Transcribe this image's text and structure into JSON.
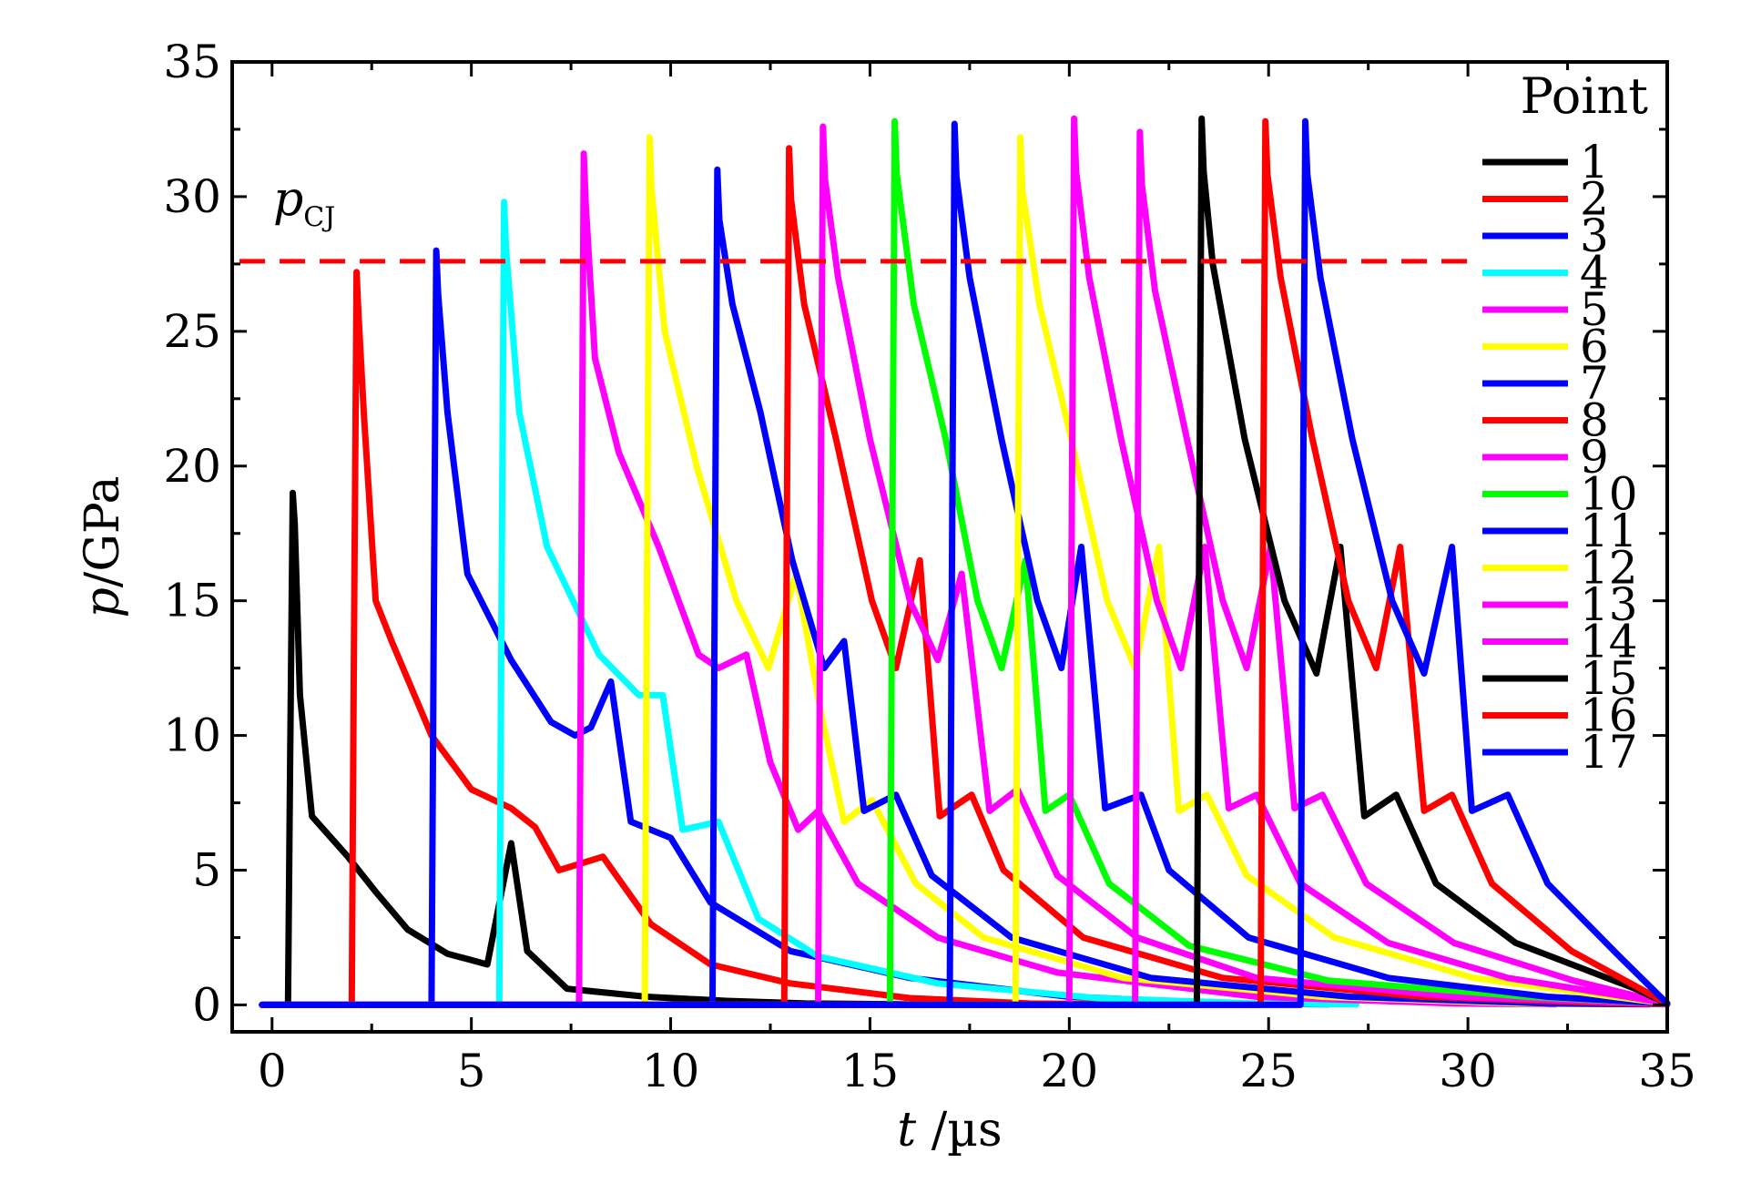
{
  "chart_data": {
    "type": "line",
    "xlabel_var": "t",
    "xlabel_unit": " /µs",
    "ylabel_var": "p",
    "ylabel_unit": "/GPa",
    "xlim": [
      -1,
      35
    ],
    "ylim": [
      -1,
      35
    ],
    "x_ticks": [
      0,
      5,
      10,
      15,
      20,
      25,
      30,
      35
    ],
    "y_ticks": [
      0,
      5,
      10,
      15,
      20,
      25,
      30,
      35
    ],
    "x_tick_labels": [
      "0",
      "5",
      "10",
      "15",
      "20",
      "25",
      "30",
      "35"
    ],
    "y_tick_labels": [
      "0",
      "5",
      "10",
      "15",
      "20",
      "25",
      "30",
      "35"
    ],
    "reference_line": {
      "label_var": "p",
      "label_sub": "CJ",
      "value": 27.6,
      "color": "#ff0000",
      "style": "dashed"
    },
    "legend_title": "Point",
    "legend_position": "right",
    "series": [
      {
        "name": "1",
        "color": "#000000",
        "onset": 0.4,
        "peak": 19.0,
        "k": [
          [
            0.3,
            11.5
          ],
          [
            0.6,
            7.0
          ],
          [
            1.5,
            5.5
          ],
          [
            2.2,
            4.2
          ],
          [
            3.0,
            2.8
          ],
          [
            4.0,
            1.9
          ],
          [
            5.0,
            1.5
          ],
          [
            5.6,
            6.0
          ],
          [
            6.0,
            2.0
          ],
          [
            7.0,
            0.6
          ],
          [
            9.0,
            0.3
          ],
          [
            11,
            0.15
          ],
          [
            13,
            0.05
          ]
        ]
      },
      {
        "name": "2",
        "color": "#ff0000",
        "onset": 2.0,
        "peak": 27.2,
        "k": [
          [
            0.3,
            22.0
          ],
          [
            0.6,
            15.0
          ],
          [
            1.0,
            13.5
          ],
          [
            2.0,
            10.0
          ],
          [
            3.0,
            8.0
          ],
          [
            4.0,
            7.3
          ],
          [
            4.6,
            6.6
          ],
          [
            5.2,
            5.0
          ],
          [
            6.3,
            5.5
          ],
          [
            7.5,
            3.0
          ],
          [
            9.0,
            1.5
          ],
          [
            11,
            0.8
          ],
          [
            14,
            0.25
          ],
          [
            17,
            0.05
          ]
        ]
      },
      {
        "name": "3",
        "color": "#0000ff",
        "onset": 4.0,
        "peak": 28.0,
        "k": [
          [
            0.4,
            22.0
          ],
          [
            0.9,
            16.0
          ],
          [
            2.0,
            12.8
          ],
          [
            3.0,
            10.5
          ],
          [
            3.6,
            10.0
          ],
          [
            4.0,
            10.3
          ],
          [
            4.5,
            12.0
          ],
          [
            5.0,
            6.8
          ],
          [
            6.0,
            6.2
          ],
          [
            7.0,
            3.8
          ],
          [
            9.0,
            2.0
          ],
          [
            12,
            1.0
          ],
          [
            16,
            0.3
          ],
          [
            20,
            0.05
          ]
        ]
      },
      {
        "name": "4",
        "color": "#00ffff",
        "onset": 5.7,
        "peak": 29.8,
        "k": [
          [
            0.5,
            22.0
          ],
          [
            1.2,
            17.0
          ],
          [
            2.5,
            13.0
          ],
          [
            3.5,
            11.5
          ],
          [
            4.1,
            11.5
          ],
          [
            4.6,
            6.5
          ],
          [
            5.5,
            6.8
          ],
          [
            6.5,
            3.2
          ],
          [
            8.0,
            1.8
          ],
          [
            11,
            0.8
          ],
          [
            15,
            0.25
          ],
          [
            19,
            0.05
          ]
        ]
      },
      {
        "name": "5",
        "color": "#ff00ff",
        "onset": 7.7,
        "peak": 31.6,
        "k": [
          [
            0.4,
            24.0
          ],
          [
            1.0,
            20.5
          ],
          [
            2.0,
            17.0
          ],
          [
            3.0,
            13.0
          ],
          [
            3.5,
            12.5
          ],
          [
            4.2,
            13.0
          ],
          [
            4.8,
            9.0
          ],
          [
            5.5,
            6.5
          ],
          [
            6.0,
            7.2
          ],
          [
            7.0,
            4.5
          ],
          [
            9.0,
            2.5
          ],
          [
            12,
            1.2
          ],
          [
            17,
            0.3
          ],
          [
            22,
            0.05
          ]
        ]
      },
      {
        "name": "6",
        "color": "#ffff00",
        "onset": 9.35,
        "peak": 32.2,
        "k": [
          [
            0.5,
            25.0
          ],
          [
            1.3,
            20.0
          ],
          [
            2.3,
            15.0
          ],
          [
            3.1,
            12.5
          ],
          [
            3.8,
            16.0
          ],
          [
            4.4,
            11.0
          ],
          [
            5.0,
            6.8
          ],
          [
            5.7,
            7.6
          ],
          [
            6.8,
            4.5
          ],
          [
            8.5,
            2.5
          ],
          [
            12,
            1.0
          ],
          [
            17,
            0.3
          ],
          [
            22,
            0.05
          ]
        ]
      },
      {
        "name": "7",
        "color": "#0000ff",
        "onset": 11.05,
        "peak": 31.0,
        "k": [
          [
            0.5,
            26.0
          ],
          [
            1.2,
            22.0
          ],
          [
            2.0,
            16.5
          ],
          [
            2.8,
            12.5
          ],
          [
            3.3,
            13.5
          ],
          [
            3.8,
            7.2
          ],
          [
            4.6,
            7.8
          ],
          [
            5.5,
            4.8
          ],
          [
            7.5,
            2.5
          ],
          [
            11,
            1.0
          ],
          [
            16,
            0.3
          ],
          [
            21,
            0.05
          ]
        ]
      },
      {
        "name": "8",
        "color": "#ff0000",
        "onset": 12.85,
        "peak": 31.8,
        "k": [
          [
            0.5,
            26.0
          ],
          [
            1.3,
            21.0
          ],
          [
            2.2,
            15.0
          ],
          [
            2.8,
            12.5
          ],
          [
            3.4,
            16.5
          ],
          [
            3.9,
            7.0
          ],
          [
            4.7,
            7.8
          ],
          [
            5.5,
            5.0
          ],
          [
            7.5,
            2.5
          ],
          [
            11,
            1.0
          ],
          [
            16,
            0.3
          ],
          [
            21,
            0.05
          ]
        ]
      },
      {
        "name": "9",
        "color": "#ff00ff",
        "onset": 13.7,
        "peak": 32.6,
        "k": [
          [
            0.5,
            27.0
          ],
          [
            1.3,
            21.0
          ],
          [
            2.3,
            15.0
          ],
          [
            3.0,
            12.8
          ],
          [
            3.6,
            16.0
          ],
          [
            4.3,
            7.2
          ],
          [
            5.0,
            8.0
          ],
          [
            6.0,
            4.8
          ],
          [
            8.0,
            2.5
          ],
          [
            11,
            1.0
          ],
          [
            16,
            0.3
          ],
          [
            21,
            0.05
          ]
        ]
      },
      {
        "name": "10",
        "color": "#00ff00",
        "onset": 15.5,
        "peak": 32.8,
        "k": [
          [
            0.6,
            26.0
          ],
          [
            1.4,
            21.0
          ],
          [
            2.2,
            15.0
          ],
          [
            2.8,
            12.5
          ],
          [
            3.4,
            16.5
          ],
          [
            3.9,
            7.2
          ],
          [
            4.5,
            7.8
          ],
          [
            5.5,
            4.5
          ],
          [
            7.5,
            2.2
          ],
          [
            11,
            0.9
          ],
          [
            16,
            0.3
          ],
          [
            20,
            0.05
          ]
        ]
      },
      {
        "name": "11",
        "color": "#0000ff",
        "onset": 17.0,
        "peak": 32.7,
        "k": [
          [
            0.5,
            27.0
          ],
          [
            1.3,
            21.0
          ],
          [
            2.2,
            15.0
          ],
          [
            2.8,
            12.5
          ],
          [
            3.3,
            17.0
          ],
          [
            3.9,
            7.3
          ],
          [
            4.8,
            7.8
          ],
          [
            5.5,
            5.0
          ],
          [
            7.5,
            2.5
          ],
          [
            11,
            1.0
          ],
          [
            15,
            0.3
          ],
          [
            18,
            0.05
          ]
        ]
      },
      {
        "name": "12",
        "color": "#ffff00",
        "onset": 18.65,
        "peak": 32.2,
        "k": [
          [
            0.6,
            26.0
          ],
          [
            1.4,
            21.0
          ],
          [
            2.3,
            15.0
          ],
          [
            3.0,
            12.5
          ],
          [
            3.6,
            17.0
          ],
          [
            4.1,
            7.2
          ],
          [
            4.8,
            7.8
          ],
          [
            5.8,
            4.8
          ],
          [
            8.0,
            2.5
          ],
          [
            11.5,
            1.0
          ],
          [
            15,
            0.3
          ],
          [
            18,
            0.05
          ]
        ]
      },
      {
        "name": "13",
        "color": "#ff00ff",
        "onset": 20.0,
        "peak": 32.9,
        "k": [
          [
            0.5,
            27.0
          ],
          [
            1.3,
            21.0
          ],
          [
            2.2,
            15.0
          ],
          [
            2.8,
            12.5
          ],
          [
            3.4,
            17.0
          ],
          [
            4.0,
            7.3
          ],
          [
            4.7,
            7.8
          ],
          [
            5.8,
            4.5
          ],
          [
            8.0,
            2.3
          ],
          [
            11,
            1.0
          ],
          [
            14,
            0.3
          ],
          [
            16,
            0.05
          ]
        ]
      },
      {
        "name": "14",
        "color": "#ff00ff",
        "onset": 21.65,
        "peak": 32.4,
        "k": [
          [
            0.5,
            26.5
          ],
          [
            1.3,
            21.0
          ],
          [
            2.2,
            15.0
          ],
          [
            2.8,
            12.5
          ],
          [
            3.4,
            17.0
          ],
          [
            4.0,
            7.3
          ],
          [
            4.7,
            7.8
          ],
          [
            5.8,
            4.5
          ],
          [
            8.0,
            2.3
          ],
          [
            11,
            0.9
          ],
          [
            13.5,
            0.05
          ]
        ]
      },
      {
        "name": "15",
        "color": "#000000",
        "onset": 23.2,
        "peak": 32.9,
        "k": [
          [
            0.4,
            27.5
          ],
          [
            1.2,
            21.0
          ],
          [
            2.2,
            15.0
          ],
          [
            3.0,
            12.3
          ],
          [
            3.6,
            17.0
          ],
          [
            4.2,
            7.0
          ],
          [
            5.0,
            7.8
          ],
          [
            6.0,
            4.5
          ],
          [
            8.0,
            2.3
          ],
          [
            11,
            0.6
          ],
          [
            12.3,
            0.05
          ]
        ]
      },
      {
        "name": "16",
        "color": "#ff0000",
        "onset": 24.8,
        "peak": 32.8,
        "k": [
          [
            0.5,
            27.0
          ],
          [
            1.3,
            21.0
          ],
          [
            2.2,
            15.0
          ],
          [
            2.9,
            12.5
          ],
          [
            3.5,
            17.0
          ],
          [
            4.1,
            7.2
          ],
          [
            4.8,
            7.8
          ],
          [
            5.8,
            4.5
          ],
          [
            7.8,
            2.0
          ],
          [
            10.2,
            0.05
          ]
        ]
      },
      {
        "name": "17",
        "color": "#0000ff",
        "onset": 25.8,
        "peak": 32.8,
        "k": [
          [
            0.5,
            27.0
          ],
          [
            1.3,
            21.0
          ],
          [
            2.3,
            15.0
          ],
          [
            3.1,
            12.3
          ],
          [
            3.8,
            17.0
          ],
          [
            4.3,
            7.2
          ],
          [
            5.2,
            7.8
          ],
          [
            6.2,
            4.5
          ],
          [
            8.0,
            1.8
          ],
          [
            9.2,
            0.05
          ]
        ]
      }
    ]
  }
}
